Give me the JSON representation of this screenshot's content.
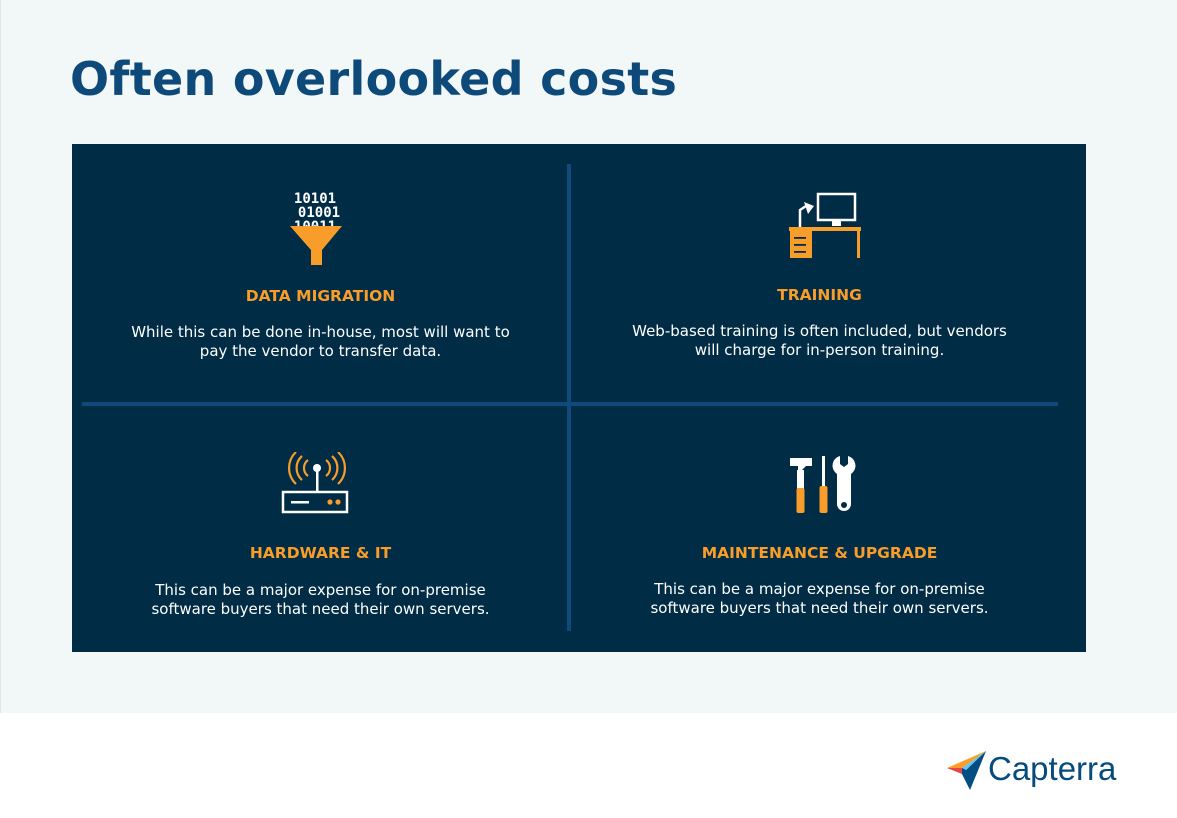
{
  "page": {
    "title": "Often overlooked costs"
  },
  "colors": {
    "title": "#0e4a79",
    "panel_background": "#002c45",
    "divider": "#0f4a7a",
    "accent_orange": "#f99d2a",
    "text_white": "#ffffff"
  },
  "cards": [
    {
      "icon": "data-funnel-icon",
      "binary_lines": [
        "10101",
        "01001",
        "10011"
      ],
      "title": "DATA MIGRATION",
      "description": "While this can be done in-house, most will want to pay the vendor to transfer data."
    },
    {
      "icon": "desk-computer-icon",
      "title": "TRAINING",
      "description": "Web-based training is often included, but vendors will charge for in-person training."
    },
    {
      "icon": "router-icon",
      "title": "HARDWARE & IT",
      "description": "This can be a major expense for on-premise software buyers that need their own servers."
    },
    {
      "icon": "tools-icon",
      "title": "MAINTENANCE & UPGRADE",
      "description": "This can be a major expense for on-premise software buyers that need their own servers."
    }
  ],
  "logo": {
    "name": "Capterra",
    "icon": "capterra-arrow-icon"
  }
}
